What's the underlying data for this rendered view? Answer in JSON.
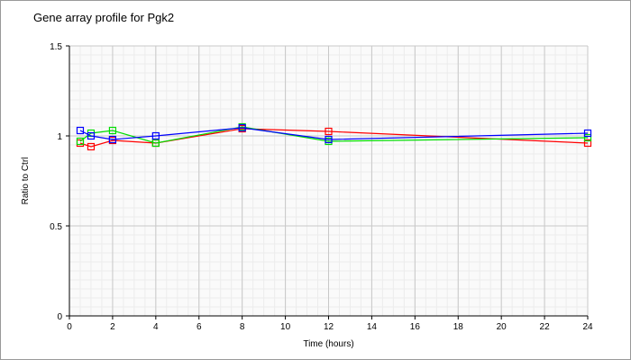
{
  "chart_data": {
    "type": "line",
    "title": "Gene array profile for Pgk2",
    "xlabel": "Time (hours)",
    "ylabel": "Ratio to Ctrl",
    "xlim": [
      0,
      24
    ],
    "ylim": [
      0,
      1.5
    ],
    "xticks": [
      0,
      2,
      4,
      6,
      8,
      10,
      12,
      14,
      16,
      18,
      20,
      22,
      24
    ],
    "yticks": [
      0,
      0.5,
      1,
      1.5
    ],
    "ytick_labels": [
      "0",
      "0.5",
      "1",
      "1.5"
    ],
    "grid": true,
    "x": [
      0.5,
      1,
      2,
      4,
      8,
      12,
      24
    ],
    "series": [
      {
        "name": "red",
        "color": "#ff0000",
        "values": [
          0.96,
          0.94,
          0.975,
          0.96,
          1.04,
          1.025,
          0.96
        ]
      },
      {
        "name": "green",
        "color": "#00dd00",
        "values": [
          0.97,
          1.015,
          1.03,
          0.96,
          1.05,
          0.97,
          0.99
        ]
      },
      {
        "name": "blue",
        "color": "#0000ff",
        "values": [
          1.03,
          1.0,
          0.98,
          1.0,
          1.045,
          0.98,
          1.015
        ]
      }
    ]
  }
}
